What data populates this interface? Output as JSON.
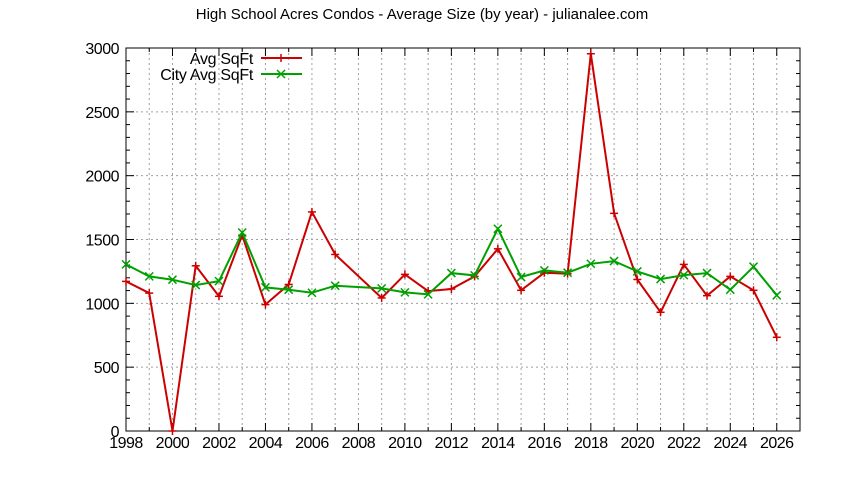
{
  "chart_data": {
    "type": "line",
    "title": "High School Acres Condos - Average Size (by year) - julianalee.com",
    "xlabel": "",
    "ylabel": "",
    "xlim": [
      1998,
      2027
    ],
    "ylim": [
      0,
      3000
    ],
    "grid": true,
    "legend_position": "top-left (inside)",
    "x_ticks": [
      1998,
      2000,
      2002,
      2004,
      2006,
      2008,
      2010,
      2012,
      2014,
      2016,
      2018,
      2020,
      2022,
      2024,
      2026
    ],
    "y_ticks": [
      0,
      500,
      1000,
      1500,
      2000,
      2500,
      3000
    ],
    "series": [
      {
        "name": "Avg SqFt",
        "color": "#cc0000",
        "marker": "plus",
        "points": [
          [
            1998,
            1172
          ],
          [
            1999,
            1080
          ],
          [
            2000,
            0
          ],
          [
            2001,
            1294
          ],
          [
            2002,
            1055
          ],
          [
            2003,
            1534
          ],
          [
            2004,
            990
          ],
          [
            2005,
            1148
          ],
          [
            2006,
            1716
          ],
          [
            2007,
            1383
          ],
          [
            2009,
            1042
          ],
          [
            2010,
            1227
          ],
          [
            2011,
            1096
          ],
          [
            2012,
            1112
          ],
          [
            2013,
            1211
          ],
          [
            2014,
            1427
          ],
          [
            2015,
            1102
          ],
          [
            2016,
            1240
          ],
          [
            2017,
            1232
          ],
          [
            2018,
            2955
          ],
          [
            2019,
            1705
          ],
          [
            2020,
            1187
          ],
          [
            2021,
            930
          ],
          [
            2022,
            1305
          ],
          [
            2023,
            1060
          ],
          [
            2024,
            1211
          ],
          [
            2025,
            1102
          ],
          [
            2026,
            734
          ]
        ]
      },
      {
        "name": "City Avg SqFt",
        "color": "#00a000",
        "marker": "x",
        "points": [
          [
            1998,
            1305
          ],
          [
            1999,
            1211
          ],
          [
            2000,
            1185
          ],
          [
            2001,
            1143
          ],
          [
            2002,
            1174
          ],
          [
            2003,
            1555
          ],
          [
            2004,
            1125
          ],
          [
            2005,
            1107
          ],
          [
            2006,
            1083
          ],
          [
            2007,
            1138
          ],
          [
            2009,
            1117
          ],
          [
            2010,
            1086
          ],
          [
            2011,
            1070
          ],
          [
            2012,
            1237
          ],
          [
            2013,
            1219
          ],
          [
            2014,
            1584
          ],
          [
            2015,
            1206
          ],
          [
            2016,
            1258
          ],
          [
            2017,
            1240
          ],
          [
            2018,
            1310
          ],
          [
            2019,
            1331
          ],
          [
            2020,
            1250
          ],
          [
            2021,
            1190
          ],
          [
            2022,
            1221
          ],
          [
            2023,
            1237
          ],
          [
            2024,
            1107
          ],
          [
            2025,
            1287
          ],
          [
            2026,
            1063
          ]
        ]
      }
    ]
  },
  "legend": {
    "items": [
      {
        "label": "Avg SqFt",
        "color": "#cc0000"
      },
      {
        "label": "City Avg SqFt",
        "color": "#00a000"
      }
    ]
  }
}
